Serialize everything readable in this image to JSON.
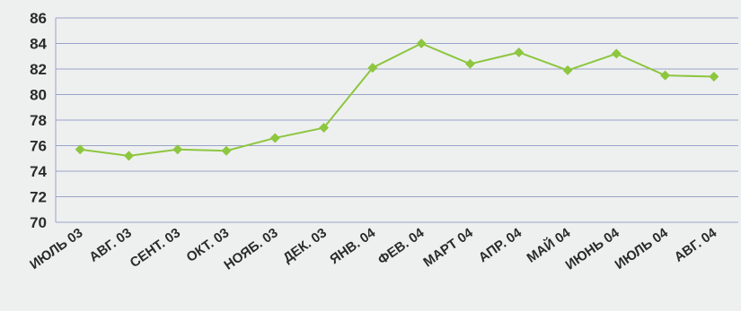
{
  "chart_data": {
    "type": "line",
    "title": "",
    "xlabel": "",
    "ylabel": "",
    "categories": [
      "ИЮЛЬ 03",
      "АВГ. 03",
      "СЕНТ. 03",
      "ОКТ. 03",
      "НОЯБ. 03",
      "ДЕК. 03",
      "ЯНВ. 04",
      "ФЕВ. 04",
      "МАРТ 04",
      "АПР. 04",
      "МАЙ 04",
      "ИЮНЬ 04",
      "ИЮЛЬ 04",
      "АВГ. 04"
    ],
    "series": [
      {
        "values": [
          75.7,
          75.2,
          75.7,
          75.6,
          76.6,
          77.4,
          82.1,
          84.0,
          82.4,
          83.3,
          81.9,
          83.2,
          81.5,
          81.4
        ]
      }
    ],
    "ylim": [
      70,
      86
    ],
    "yticks": [
      70,
      72,
      74,
      76,
      78,
      80,
      82,
      84,
      86
    ],
    "grid": true,
    "legend": "none",
    "colors": {
      "line": "#8dc63f",
      "marker": "#8dc63f",
      "grid": "#9aa3c7",
      "text": "#2b2b2b",
      "background": "#eef0f0"
    }
  }
}
